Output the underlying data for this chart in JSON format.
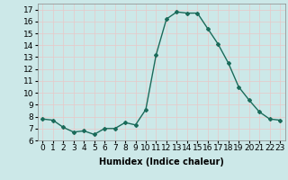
{
  "x": [
    0,
    1,
    2,
    3,
    4,
    5,
    6,
    7,
    8,
    9,
    10,
    11,
    12,
    13,
    14,
    15,
    16,
    17,
    18,
    19,
    20,
    21,
    22,
    23
  ],
  "y": [
    7.8,
    7.7,
    7.1,
    6.7,
    6.8,
    6.5,
    7.0,
    7.0,
    7.5,
    7.3,
    8.6,
    13.2,
    16.2,
    16.8,
    16.7,
    16.7,
    15.4,
    14.1,
    12.5,
    10.5,
    9.4,
    8.4,
    7.8,
    7.7
  ],
  "line_color": "#1a6b5a",
  "marker": "D",
  "marker_size": 2,
  "bg_color": "#cce8e8",
  "grid_color": "#e8c8c8",
  "xlabel": "Humidex (Indice chaleur)",
  "xlim": [
    -0.5,
    23.5
  ],
  "ylim": [
    6.0,
    17.5
  ],
  "yticks": [
    6,
    7,
    8,
    9,
    10,
    11,
    12,
    13,
    14,
    15,
    16,
    17
  ],
  "xticks": [
    0,
    1,
    2,
    3,
    4,
    5,
    6,
    7,
    8,
    9,
    10,
    11,
    12,
    13,
    14,
    15,
    16,
    17,
    18,
    19,
    20,
    21,
    22,
    23
  ],
  "xlabel_fontsize": 7,
  "tick_fontsize": 6.5
}
